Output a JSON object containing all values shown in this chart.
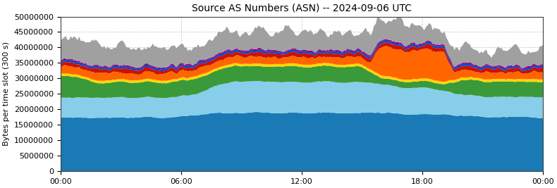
{
  "title": "Source AS Numbers (ASN) -- 2024-09-06 UTC",
  "ylabel": "Bytes per time slot (300 s)",
  "xlim": [
    0,
    288
  ],
  "ylim": [
    0,
    50000000
  ],
  "yticks": [
    0,
    5000000,
    10000000,
    15000000,
    20000000,
    25000000,
    30000000,
    35000000,
    40000000,
    45000000,
    50000000
  ],
  "xtick_positions": [
    0,
    72,
    144,
    216,
    288
  ],
  "xtick_labels": [
    "00:00",
    "06:00",
    "12:00",
    "18:00",
    "00:00"
  ],
  "grid_color": "#b0b0b0",
  "background_color": "#ffffff",
  "colors": [
    "#1a7ab5",
    "#87ceeb",
    "#3a9a3a",
    "#ffd700",
    "#ff6600",
    "#cc1100",
    "#0044cc",
    "#880088",
    "#a0a0a0"
  ],
  "seed": 42
}
